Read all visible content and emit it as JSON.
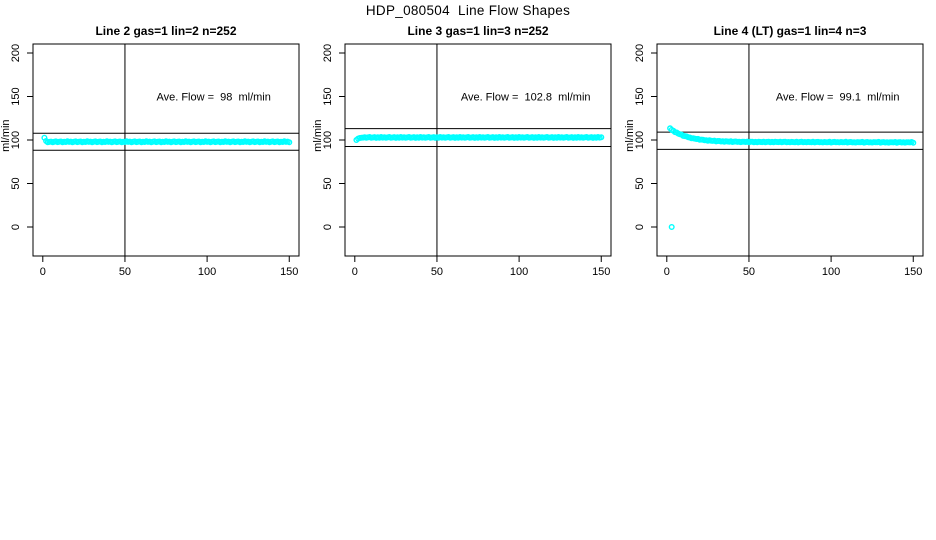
{
  "figure_title": "HDP_080504  Line Flow Shapes",
  "colors": {
    "point": "#00FFFF",
    "axis": "#000000",
    "text": "#000000",
    "background": "#FFFFFF"
  },
  "chart_data": [
    {
      "type": "scatter",
      "title": "Line 2 gas=1 lin=2 n=252",
      "annotation": "Ave. Flow =  98  ml/min",
      "ave_flow_ml_min": 98,
      "ylabel": "ml/min",
      "xlabel": "",
      "xticks": [
        0,
        50,
        100,
        150
      ],
      "yticks": [
        0,
        50,
        100,
        150,
        200
      ],
      "xlim": [
        0,
        150
      ],
      "ylim": [
        0,
        200
      ],
      "vline_x": 50,
      "ref_line_high": 107.8,
      "ref_line_low": 88.2,
      "marker": "open-circle",
      "x_start": 1,
      "x_step": 1,
      "y": [
        102.6,
        98.8,
        97.3,
        97.8,
        98.2,
        97.5,
        98.0,
        98.4,
        97.6,
        97.9,
        98.3,
        97.4,
        98.1,
        97.7,
        98.5,
        97.8,
        98.2,
        97.5,
        98.0,
        98.4,
        97.6,
        97.9,
        98.3,
        97.4,
        98.1,
        97.7,
        98.5,
        97.8,
        98.2,
        97.5,
        98.0,
        98.4,
        97.6,
        97.9,
        98.3,
        97.4,
        98.1,
        97.7,
        98.5,
        97.8,
        98.2,
        97.5,
        98.0,
        98.4,
        97.6,
        97.9,
        98.3,
        97.4,
        98.1,
        97.7,
        98.5,
        97.8,
        98.2,
        97.5,
        98.0,
        98.4,
        97.6,
        97.9,
        98.3,
        97.4,
        98.1,
        97.7,
        98.5,
        97.8,
        98.2,
        97.5,
        98.0,
        98.4,
        97.6,
        97.9,
        98.3,
        97.4,
        98.1,
        97.7,
        98.5,
        97.8,
        98.2,
        97.5,
        98.0,
        98.4,
        97.6,
        97.9,
        98.3,
        97.4,
        98.1,
        97.7,
        98.5,
        97.8,
        98.2,
        97.5,
        98.0,
        98.4,
        97.6,
        97.9,
        98.3,
        97.4,
        98.1,
        97.7,
        98.5,
        97.8,
        98.2,
        97.5,
        98.0,
        98.4,
        97.6,
        97.9,
        98.3,
        97.4,
        98.1,
        97.7,
        98.5,
        97.8,
        98.2,
        97.5,
        98.0,
        98.4,
        97.6,
        97.9,
        98.3,
        97.4,
        98.1,
        97.7,
        98.5,
        97.8,
        98.2,
        97.5,
        98.0,
        98.4,
        97.6,
        97.9,
        98.3,
        97.4,
        98.1,
        97.7,
        98.5,
        97.8,
        98.2,
        97.5,
        98.0,
        98.4,
        97.6,
        97.9,
        98.3,
        97.4,
        98.1,
        97.7,
        98.5,
        97.8,
        98.2,
        97.5
      ],
      "outliers": []
    },
    {
      "type": "scatter",
      "title": "Line 3 gas=1 lin=3 n=252",
      "annotation": "Ave. Flow =  102.8  ml/min",
      "ave_flow_ml_min": 102.8,
      "ylabel": "ml/min",
      "xlabel": "",
      "xticks": [
        0,
        50,
        100,
        150
      ],
      "yticks": [
        0,
        50,
        100,
        150,
        200
      ],
      "xlim": [
        0,
        150
      ],
      "ylim": [
        0,
        200
      ],
      "vline_x": 50,
      "ref_line_high": 113.1,
      "ref_line_low": 92.5,
      "marker": "open-circle",
      "x_start": 1,
      "x_step": 1,
      "y": [
        100.0,
        101.6,
        102.3,
        102.6,
        102.8,
        103.2,
        102.5,
        103.0,
        103.4,
        102.6,
        102.9,
        103.3,
        102.4,
        103.1,
        102.7,
        103.5,
        102.8,
        103.2,
        102.5,
        103.0,
        103.4,
        102.6,
        102.9,
        103.3,
        102.4,
        103.1,
        102.7,
        103.5,
        102.8,
        103.2,
        102.5,
        103.0,
        103.4,
        102.6,
        102.9,
        103.3,
        102.4,
        103.1,
        102.7,
        103.5,
        102.8,
        103.2,
        102.5,
        103.0,
        103.4,
        102.6,
        102.9,
        103.3,
        102.4,
        103.1,
        102.7,
        103.5,
        102.8,
        103.2,
        102.5,
        103.0,
        103.4,
        102.6,
        102.9,
        103.3,
        102.4,
        103.1,
        102.7,
        103.5,
        102.8,
        103.2,
        102.5,
        103.0,
        103.4,
        102.6,
        102.9,
        103.3,
        102.4,
        103.1,
        102.7,
        103.5,
        102.8,
        103.2,
        102.5,
        103.0,
        103.4,
        102.6,
        102.9,
        103.3,
        102.4,
        103.1,
        102.7,
        103.5,
        102.8,
        103.2,
        102.5,
        103.0,
        103.4,
        102.6,
        102.9,
        103.3,
        102.4,
        103.1,
        102.7,
        103.5,
        102.8,
        103.2,
        102.5,
        103.0,
        103.4,
        102.6,
        102.9,
        103.3,
        102.4,
        103.1,
        102.7,
        103.5,
        102.8,
        103.2,
        102.5,
        103.0,
        103.4,
        102.6,
        102.9,
        103.3,
        102.4,
        103.1,
        102.7,
        103.5,
        102.8,
        103.2,
        102.5,
        103.0,
        103.4,
        102.6,
        102.9,
        103.3,
        102.4,
        103.1,
        102.7,
        103.5,
        102.8,
        103.2,
        102.5,
        103.0,
        103.4,
        102.6,
        102.9,
        103.3,
        102.4,
        103.1,
        102.7,
        103.5,
        102.8,
        103.2
      ],
      "outliers": []
    },
    {
      "type": "scatter",
      "title": "Line 4 (LT) gas=1 lin=4 n=3",
      "annotation": "Ave. Flow =  99.1  ml/min",
      "ave_flow_ml_min": 99.1,
      "ylabel": "ml/min",
      "xlabel": "",
      "xticks": [
        0,
        50,
        100,
        150
      ],
      "yticks": [
        0,
        50,
        100,
        150,
        200
      ],
      "xlim": [
        0,
        150
      ],
      "ylim": [
        0,
        200
      ],
      "vline_x": 50,
      "ref_line_high": 109.0,
      "ref_line_low": 89.2,
      "marker": "open-circle",
      "x_start": 2,
      "x_step": 1,
      "y": [
        113.4,
        111.6,
        110.6,
        109.1,
        108.6,
        107.4,
        106.5,
        106.2,
        104.7,
        104.5,
        104.1,
        103.1,
        102.9,
        102.1,
        102.1,
        101.6,
        101.1,
        101.3,
        100.2,
        100.5,
        100.4,
        99.7,
        99.8,
        99.2,
        99.6,
        99.2,
        99.0,
        99.3,
        98.4,
        98.8,
        98.9,
        98.3,
        98.6,
        98.1,
        98.5,
        98.3,
        98.1,
        98.6,
        97.7,
        98.2,
        98.3,
        97.8,
        98.0,
        97.6,
        98.1,
        97.9,
        97.7,
        98.2,
        97.4,
        97.9,
        98.0,
        97.5,
        97.8,
        97.4,
        97.9,
        97.7,
        97.6,
        98.1,
        97.3,
        97.8,
        98.0,
        97.5,
        97.8,
        97.4,
        97.9,
        97.7,
        97.6,
        98.1,
        97.3,
        97.8,
        97.9,
        97.4,
        97.7,
        97.3,
        97.8,
        97.6,
        97.5,
        98.0,
        97.2,
        97.7,
        97.9,
        97.4,
        97.7,
        97.3,
        97.8,
        97.6,
        97.5,
        98.0,
        97.2,
        97.7,
        97.8,
        97.3,
        97.6,
        97.2,
        97.7,
        97.5,
        97.4,
        97.9,
        97.1,
        97.6,
        97.8,
        97.3,
        97.6,
        97.2,
        97.7,
        97.5,
        97.4,
        97.9,
        97.1,
        97.6,
        97.7,
        97.2,
        97.5,
        97.1,
        97.6,
        97.4,
        97.3,
        97.8,
        97.0,
        97.5,
        97.7,
        97.2,
        97.5,
        97.1,
        97.6,
        97.4,
        97.3,
        97.8,
        97.0,
        97.5,
        97.6,
        97.1,
        97.4,
        97.0,
        97.5,
        97.3,
        97.2,
        97.7,
        96.9,
        97.4,
        97.6,
        97.1,
        97.4,
        97.0,
        97.5,
        97.3,
        97.2,
        97.7,
        96.9
      ],
      "outliers": [
        [
          3,
          0
        ]
      ]
    }
  ]
}
